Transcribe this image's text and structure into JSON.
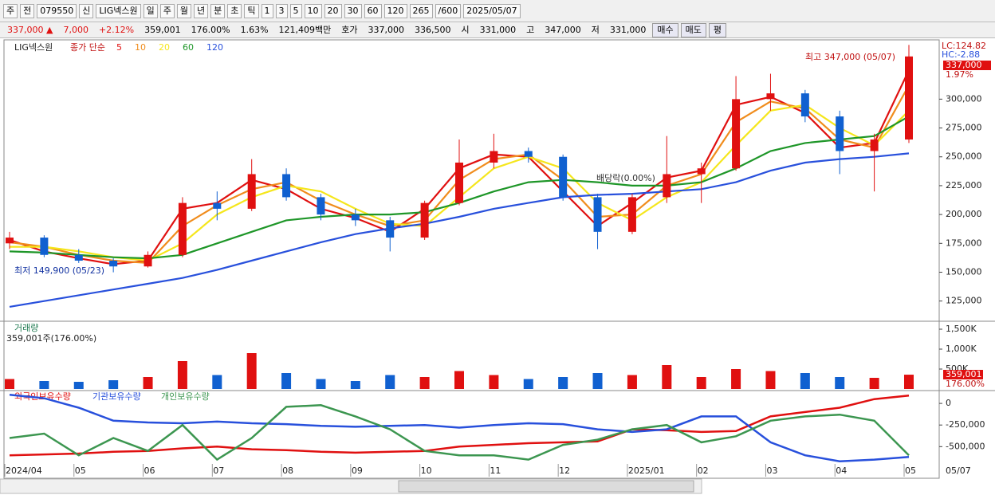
{
  "toolbar": {
    "items": [
      "주",
      "전"
    ],
    "code": "079550",
    "badge": "신",
    "name": "LIG넥스원",
    "periods": [
      "일",
      "주",
      "월",
      "년",
      "분",
      "초",
      "틱"
    ],
    "intervals": [
      "1",
      "3",
      "5",
      "10",
      "20",
      "30",
      "60",
      "120"
    ],
    "count": "265",
    "max": "/600",
    "date": "2025/05/07"
  },
  "quote": {
    "items": [
      "337,000 ▲",
      "7,000",
      "+2.12%",
      "359,001",
      "176.00%",
      "1.63%",
      "121,409백만",
      "호가",
      "337,000",
      "336,500",
      "시",
      "331,000",
      "고",
      "347,000",
      "저",
      "331,000"
    ],
    "buttons": [
      "매수",
      "매도",
      "평"
    ]
  },
  "x_axis": {
    "categories": [
      "2024/04",
      null,
      "05",
      null,
      "06",
      null,
      "07",
      null,
      "08",
      null,
      "09",
      null,
      "10",
      null,
      "11",
      null,
      "12",
      null,
      "2025/01",
      null,
      "02",
      null,
      "03",
      null,
      "04",
      null,
      "05"
    ],
    "end_label": "05/07"
  },
  "chart_data": [
    {
      "type": "candlestick",
      "name": "LIG넥스원",
      "legend_title": "종가 단순",
      "open": [
        175000,
        180000,
        165000,
        160000,
        155000,
        165000,
        210000,
        205000,
        235000,
        215000,
        200000,
        195000,
        180000,
        210000,
        245000,
        255000,
        250000,
        215000,
        185000,
        215000,
        235000,
        240000,
        300000,
        305000,
        285000,
        255000,
        265000
      ],
      "high": [
        185000,
        182000,
        170000,
        162000,
        168000,
        215000,
        220000,
        248000,
        240000,
        218000,
        205000,
        198000,
        212000,
        265000,
        270000,
        258000,
        252000,
        218000,
        218000,
        268000,
        245000,
        320000,
        322000,
        308000,
        290000,
        270000,
        347000
      ],
      "low": [
        170000,
        163000,
        158000,
        149900,
        154000,
        163000,
        195000,
        203000,
        212000,
        195000,
        190000,
        168000,
        178000,
        208000,
        240000,
        245000,
        212000,
        170000,
        183000,
        210000,
        210000,
        238000,
        290000,
        280000,
        235000,
        220000,
        262000
      ],
      "close": [
        180000,
        165000,
        160000,
        155000,
        165000,
        210000,
        205000,
        235000,
        215000,
        200000,
        195000,
        180000,
        210000,
        245000,
        255000,
        250000,
        215000,
        185000,
        215000,
        235000,
        240000,
        300000,
        305000,
        285000,
        255000,
        265000,
        337000
      ],
      "up_color": "#e01010",
      "down_color": "#1060d0",
      "series": [
        {
          "name": "5",
          "color": "#e01010",
          "values": [
            178000,
            168000,
            162000,
            157000,
            160000,
            205000,
            210000,
            230000,
            222000,
            205000,
            197000,
            185000,
            205000,
            240000,
            252000,
            250000,
            220000,
            190000,
            210000,
            232000,
            238000,
            295000,
            302000,
            288000,
            258000,
            262000,
            325000
          ]
        },
        {
          "name": "10",
          "color": "#f08c1c",
          "values": [
            176000,
            172000,
            165000,
            160000,
            158000,
            190000,
            208000,
            222000,
            228000,
            212000,
            200000,
            190000,
            195000,
            230000,
            248000,
            252000,
            230000,
            198000,
            200000,
            225000,
            235000,
            280000,
            298000,
            292000,
            265000,
            258000,
            312000
          ]
        },
        {
          "name": "20",
          "color": "#f5e61c",
          "values": [
            172000,
            172000,
            168000,
            163000,
            160000,
            175000,
            200000,
            215000,
            225000,
            220000,
            205000,
            192000,
            190000,
            215000,
            240000,
            250000,
            240000,
            210000,
            195000,
            215000,
            228000,
            260000,
            290000,
            295000,
            275000,
            260000,
            290000
          ]
        },
        {
          "name": "60",
          "color": "#1e9628",
          "values": [
            168000,
            167000,
            165000,
            163000,
            162000,
            165000,
            175000,
            185000,
            195000,
            198000,
            200000,
            200000,
            202000,
            210000,
            220000,
            228000,
            230000,
            228000,
            225000,
            225000,
            228000,
            240000,
            255000,
            262000,
            265000,
            268000,
            285000
          ]
        },
        {
          "name": "120",
          "color": "#2850dc",
          "values": [
            120000,
            125000,
            130000,
            135000,
            140000,
            145000,
            152000,
            160000,
            168000,
            176000,
            183000,
            188000,
            192000,
            198000,
            205000,
            210000,
            215000,
            217000,
            218000,
            220000,
            222000,
            228000,
            238000,
            245000,
            248000,
            250000,
            253000
          ]
        }
      ],
      "ylim": [
        107500,
        350000
      ],
      "yticks": [
        {
          "value": 125000,
          "label": "125,000"
        },
        {
          "value": 150000,
          "label": "150,000"
        },
        {
          "value": 175000,
          "label": "175,000"
        },
        {
          "value": 200000,
          "label": "200,000"
        },
        {
          "value": 225000,
          "label": "225,000"
        },
        {
          "value": 250000,
          "label": "250,000"
        },
        {
          "value": 275000,
          "label": "275,000"
        },
        {
          "value": 300000,
          "label": "300,000"
        }
      ],
      "annotations": [
        "최고 347,000 (05/07)",
        "최저 149,900 (05/23)",
        "배당락(0.00%)",
        "LC:124.82",
        "HC:-2.88",
        "337,000",
        "1.97%"
      ]
    },
    {
      "type": "bar",
      "name": "거래량",
      "subtitle": "359,001주(176.00%)",
      "values": [
        250000,
        200000,
        180000,
        220000,
        300000,
        700000,
        350000,
        900000,
        400000,
        250000,
        200000,
        350000,
        300000,
        450000,
        350000,
        250000,
        300000,
        400000,
        350000,
        600000,
        300000,
        500000,
        450000,
        400000,
        300000,
        280000,
        359001
      ],
      "ylim": [
        0,
        1660000
      ],
      "yticks": [
        {
          "value": 500000,
          "label": "500K"
        },
        {
          "value": 1000000,
          "label": "1,000K"
        },
        {
          "value": 1500000,
          "label": "1,500K"
        }
      ],
      "annotations": [
        "359,001",
        "176.00%"
      ]
    },
    {
      "type": "line",
      "series": [
        {
          "name": "외국인보유수량",
          "color": "#e01010",
          "values": [
            -600000,
            -590000,
            -580000,
            -560000,
            -550000,
            -520000,
            -500000,
            -530000,
            -540000,
            -560000,
            -570000,
            -560000,
            -550000,
            -500000,
            -480000,
            -460000,
            -450000,
            -440000,
            -300000,
            -310000,
            -330000,
            -320000,
            -150000,
            -100000,
            -50000,
            50000,
            90000
          ]
        },
        {
          "name": "기관보유수량",
          "color": "#2850dc",
          "values": [
            100000,
            60000,
            -50000,
            -200000,
            -220000,
            -230000,
            -210000,
            -230000,
            -240000,
            -260000,
            -270000,
            -260000,
            -250000,
            -280000,
            -250000,
            -230000,
            -240000,
            -300000,
            -330000,
            -300000,
            -150000,
            -150000,
            -450000,
            -600000,
            -670000,
            -650000,
            -620000
          ]
        },
        {
          "name": "개인보유수량",
          "color": "#3c9650",
          "values": [
            -400000,
            -350000,
            -600000,
            -400000,
            -550000,
            -250000,
            -650000,
            -400000,
            -40000,
            -20000,
            -150000,
            -300000,
            -550000,
            -600000,
            -600000,
            -650000,
            -480000,
            -420000,
            -300000,
            -250000,
            -450000,
            -380000,
            -200000,
            -150000,
            -130000,
            -200000,
            -600000
          ]
        }
      ],
      "ylim": [
        -700000,
        130000
      ],
      "yticks": [
        0,
        {
          "value": -250000,
          "label": "-250,000"
        },
        {
          "value": -500000,
          "label": "-500,000"
        }
      ]
    }
  ]
}
